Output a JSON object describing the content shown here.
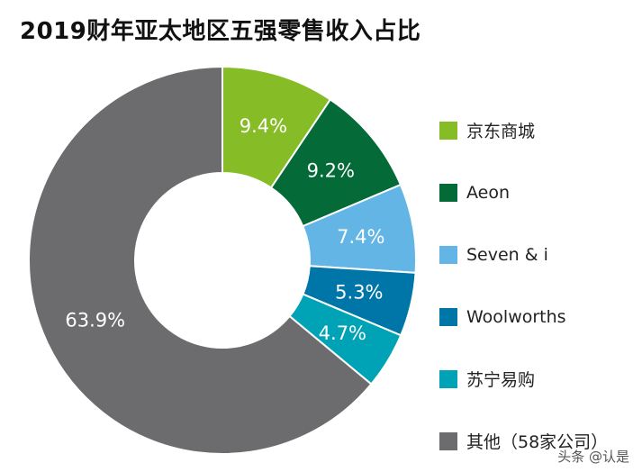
{
  "title": "2019财年亚太地区五强零售收入占比",
  "watermark": "头条 @认是",
  "chart_data": {
    "type": "pie",
    "donut": true,
    "title": "2019财年亚太地区五强零售收入占比",
    "unit": "%",
    "legend_position": "right",
    "slices": [
      {
        "label": "京东商城",
        "value": 9.4,
        "value_label": "9.4%",
        "color": "#86bc25"
      },
      {
        "label": "Aeon",
        "value": 9.2,
        "value_label": "9.2%",
        "color": "#046a38"
      },
      {
        "label": "Seven & i",
        "value": 7.4,
        "value_label": "7.4%",
        "color": "#62b5e5"
      },
      {
        "label": "Woolworths",
        "value": 5.3,
        "value_label": "5.3%",
        "color": "#0076a8"
      },
      {
        "label": "苏宁易购",
        "value": 4.7,
        "value_label": "4.7%",
        "color": "#00a3b5"
      },
      {
        "label": "其他（58家公司）",
        "value": 63.9,
        "value_label": "63.9%",
        "color": "#6c6c6f"
      }
    ]
  }
}
